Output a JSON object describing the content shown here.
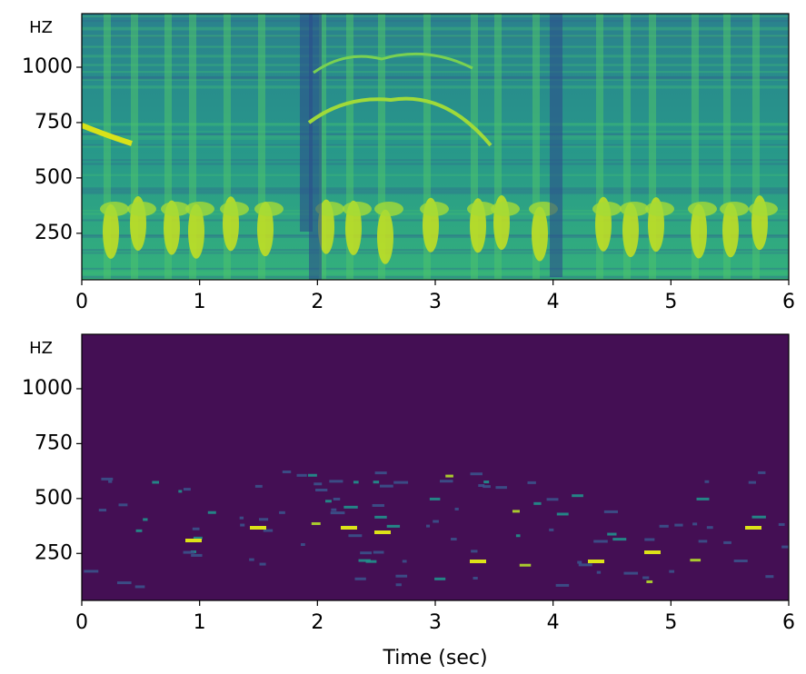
{
  "chart_data": [
    {
      "type": "spectrogram",
      "y_label": "HZ",
      "color": "#2c8d8a",
      "xlim": [
        0,
        6
      ],
      "xticks": [
        0,
        1,
        2,
        3,
        4,
        5,
        6
      ],
      "ylim": [
        40,
        1242
      ],
      "yticks": [
        250,
        500,
        750,
        1000
      ]
    },
    {
      "type": "spectrogram",
      "y_label": "HZ",
      "x_label": "Time (sec)",
      "color": "#440f54",
      "xlim": [
        0,
        6
      ],
      "xticks": [
        0,
        1,
        2,
        3,
        4,
        5,
        6
      ],
      "ylim": [
        36,
        1248
      ],
      "yticks": [
        250,
        500,
        750,
        1000
      ]
    }
  ]
}
